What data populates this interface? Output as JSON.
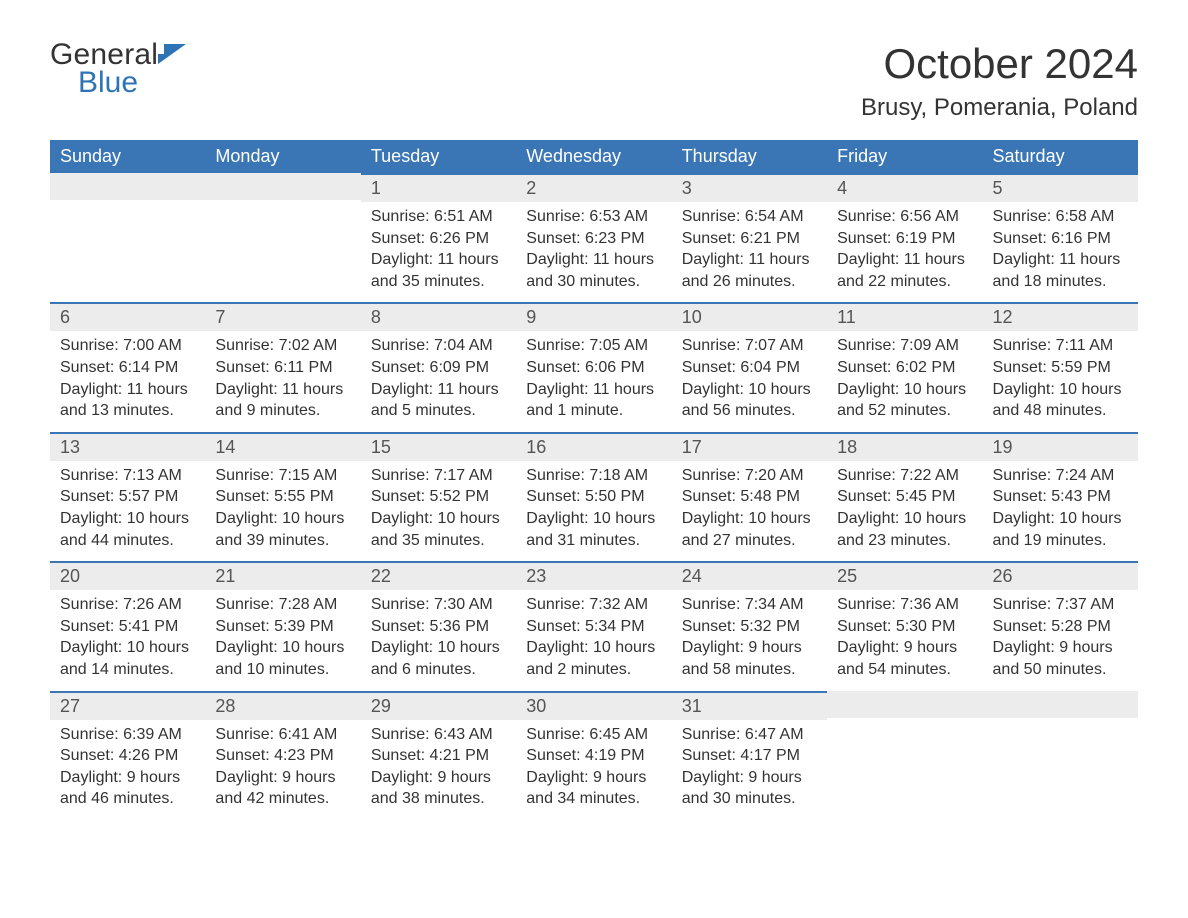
{
  "logo": {
    "word1": "General",
    "word2": "Blue",
    "flag_color": "#2e74b5"
  },
  "title": "October 2024",
  "location": "Brusy, Pomerania, Poland",
  "colors": {
    "header_bg": "#3a76b5",
    "header_fg": "#ffffff",
    "daynum_bg": "#ececec",
    "daynum_border": "#3a76b5",
    "text": "#333333",
    "bg": "#ffffff"
  },
  "typography": {
    "title_fontsize": 42,
    "location_fontsize": 24,
    "header_fontsize": 18,
    "daynum_fontsize": 18,
    "body_fontsize": 16
  },
  "day_headers": [
    "Sunday",
    "Monday",
    "Tuesday",
    "Wednesday",
    "Thursday",
    "Friday",
    "Saturday"
  ],
  "weeks": [
    [
      {
        "day": "",
        "sunrise": "",
        "sunset": "",
        "daylight1": "",
        "daylight2": ""
      },
      {
        "day": "",
        "sunrise": "",
        "sunset": "",
        "daylight1": "",
        "daylight2": ""
      },
      {
        "day": "1",
        "sunrise": "Sunrise: 6:51 AM",
        "sunset": "Sunset: 6:26 PM",
        "daylight1": "Daylight: 11 hours",
        "daylight2": "and 35 minutes."
      },
      {
        "day": "2",
        "sunrise": "Sunrise: 6:53 AM",
        "sunset": "Sunset: 6:23 PM",
        "daylight1": "Daylight: 11 hours",
        "daylight2": "and 30 minutes."
      },
      {
        "day": "3",
        "sunrise": "Sunrise: 6:54 AM",
        "sunset": "Sunset: 6:21 PM",
        "daylight1": "Daylight: 11 hours",
        "daylight2": "and 26 minutes."
      },
      {
        "day": "4",
        "sunrise": "Sunrise: 6:56 AM",
        "sunset": "Sunset: 6:19 PM",
        "daylight1": "Daylight: 11 hours",
        "daylight2": "and 22 minutes."
      },
      {
        "day": "5",
        "sunrise": "Sunrise: 6:58 AM",
        "sunset": "Sunset: 6:16 PM",
        "daylight1": "Daylight: 11 hours",
        "daylight2": "and 18 minutes."
      }
    ],
    [
      {
        "day": "6",
        "sunrise": "Sunrise: 7:00 AM",
        "sunset": "Sunset: 6:14 PM",
        "daylight1": "Daylight: 11 hours",
        "daylight2": "and 13 minutes."
      },
      {
        "day": "7",
        "sunrise": "Sunrise: 7:02 AM",
        "sunset": "Sunset: 6:11 PM",
        "daylight1": "Daylight: 11 hours",
        "daylight2": "and 9 minutes."
      },
      {
        "day": "8",
        "sunrise": "Sunrise: 7:04 AM",
        "sunset": "Sunset: 6:09 PM",
        "daylight1": "Daylight: 11 hours",
        "daylight2": "and 5 minutes."
      },
      {
        "day": "9",
        "sunrise": "Sunrise: 7:05 AM",
        "sunset": "Sunset: 6:06 PM",
        "daylight1": "Daylight: 11 hours",
        "daylight2": "and 1 minute."
      },
      {
        "day": "10",
        "sunrise": "Sunrise: 7:07 AM",
        "sunset": "Sunset: 6:04 PM",
        "daylight1": "Daylight: 10 hours",
        "daylight2": "and 56 minutes."
      },
      {
        "day": "11",
        "sunrise": "Sunrise: 7:09 AM",
        "sunset": "Sunset: 6:02 PM",
        "daylight1": "Daylight: 10 hours",
        "daylight2": "and 52 minutes."
      },
      {
        "day": "12",
        "sunrise": "Sunrise: 7:11 AM",
        "sunset": "Sunset: 5:59 PM",
        "daylight1": "Daylight: 10 hours",
        "daylight2": "and 48 minutes."
      }
    ],
    [
      {
        "day": "13",
        "sunrise": "Sunrise: 7:13 AM",
        "sunset": "Sunset: 5:57 PM",
        "daylight1": "Daylight: 10 hours",
        "daylight2": "and 44 minutes."
      },
      {
        "day": "14",
        "sunrise": "Sunrise: 7:15 AM",
        "sunset": "Sunset: 5:55 PM",
        "daylight1": "Daylight: 10 hours",
        "daylight2": "and 39 minutes."
      },
      {
        "day": "15",
        "sunrise": "Sunrise: 7:17 AM",
        "sunset": "Sunset: 5:52 PM",
        "daylight1": "Daylight: 10 hours",
        "daylight2": "and 35 minutes."
      },
      {
        "day": "16",
        "sunrise": "Sunrise: 7:18 AM",
        "sunset": "Sunset: 5:50 PM",
        "daylight1": "Daylight: 10 hours",
        "daylight2": "and 31 minutes."
      },
      {
        "day": "17",
        "sunrise": "Sunrise: 7:20 AM",
        "sunset": "Sunset: 5:48 PM",
        "daylight1": "Daylight: 10 hours",
        "daylight2": "and 27 minutes."
      },
      {
        "day": "18",
        "sunrise": "Sunrise: 7:22 AM",
        "sunset": "Sunset: 5:45 PM",
        "daylight1": "Daylight: 10 hours",
        "daylight2": "and 23 minutes."
      },
      {
        "day": "19",
        "sunrise": "Sunrise: 7:24 AM",
        "sunset": "Sunset: 5:43 PM",
        "daylight1": "Daylight: 10 hours",
        "daylight2": "and 19 minutes."
      }
    ],
    [
      {
        "day": "20",
        "sunrise": "Sunrise: 7:26 AM",
        "sunset": "Sunset: 5:41 PM",
        "daylight1": "Daylight: 10 hours",
        "daylight2": "and 14 minutes."
      },
      {
        "day": "21",
        "sunrise": "Sunrise: 7:28 AM",
        "sunset": "Sunset: 5:39 PM",
        "daylight1": "Daylight: 10 hours",
        "daylight2": "and 10 minutes."
      },
      {
        "day": "22",
        "sunrise": "Sunrise: 7:30 AM",
        "sunset": "Sunset: 5:36 PM",
        "daylight1": "Daylight: 10 hours",
        "daylight2": "and 6 minutes."
      },
      {
        "day": "23",
        "sunrise": "Sunrise: 7:32 AM",
        "sunset": "Sunset: 5:34 PM",
        "daylight1": "Daylight: 10 hours",
        "daylight2": "and 2 minutes."
      },
      {
        "day": "24",
        "sunrise": "Sunrise: 7:34 AM",
        "sunset": "Sunset: 5:32 PM",
        "daylight1": "Daylight: 9 hours",
        "daylight2": "and 58 minutes."
      },
      {
        "day": "25",
        "sunrise": "Sunrise: 7:36 AM",
        "sunset": "Sunset: 5:30 PM",
        "daylight1": "Daylight: 9 hours",
        "daylight2": "and 54 minutes."
      },
      {
        "day": "26",
        "sunrise": "Sunrise: 7:37 AM",
        "sunset": "Sunset: 5:28 PM",
        "daylight1": "Daylight: 9 hours",
        "daylight2": "and 50 minutes."
      }
    ],
    [
      {
        "day": "27",
        "sunrise": "Sunrise: 6:39 AM",
        "sunset": "Sunset: 4:26 PM",
        "daylight1": "Daylight: 9 hours",
        "daylight2": "and 46 minutes."
      },
      {
        "day": "28",
        "sunrise": "Sunrise: 6:41 AM",
        "sunset": "Sunset: 4:23 PM",
        "daylight1": "Daylight: 9 hours",
        "daylight2": "and 42 minutes."
      },
      {
        "day": "29",
        "sunrise": "Sunrise: 6:43 AM",
        "sunset": "Sunset: 4:21 PM",
        "daylight1": "Daylight: 9 hours",
        "daylight2": "and 38 minutes."
      },
      {
        "day": "30",
        "sunrise": "Sunrise: 6:45 AM",
        "sunset": "Sunset: 4:19 PM",
        "daylight1": "Daylight: 9 hours",
        "daylight2": "and 34 minutes."
      },
      {
        "day": "31",
        "sunrise": "Sunrise: 6:47 AM",
        "sunset": "Sunset: 4:17 PM",
        "daylight1": "Daylight: 9 hours",
        "daylight2": "and 30 minutes."
      },
      {
        "day": "",
        "sunrise": "",
        "sunset": "",
        "daylight1": "",
        "daylight2": ""
      },
      {
        "day": "",
        "sunrise": "",
        "sunset": "",
        "daylight1": "",
        "daylight2": ""
      }
    ]
  ]
}
